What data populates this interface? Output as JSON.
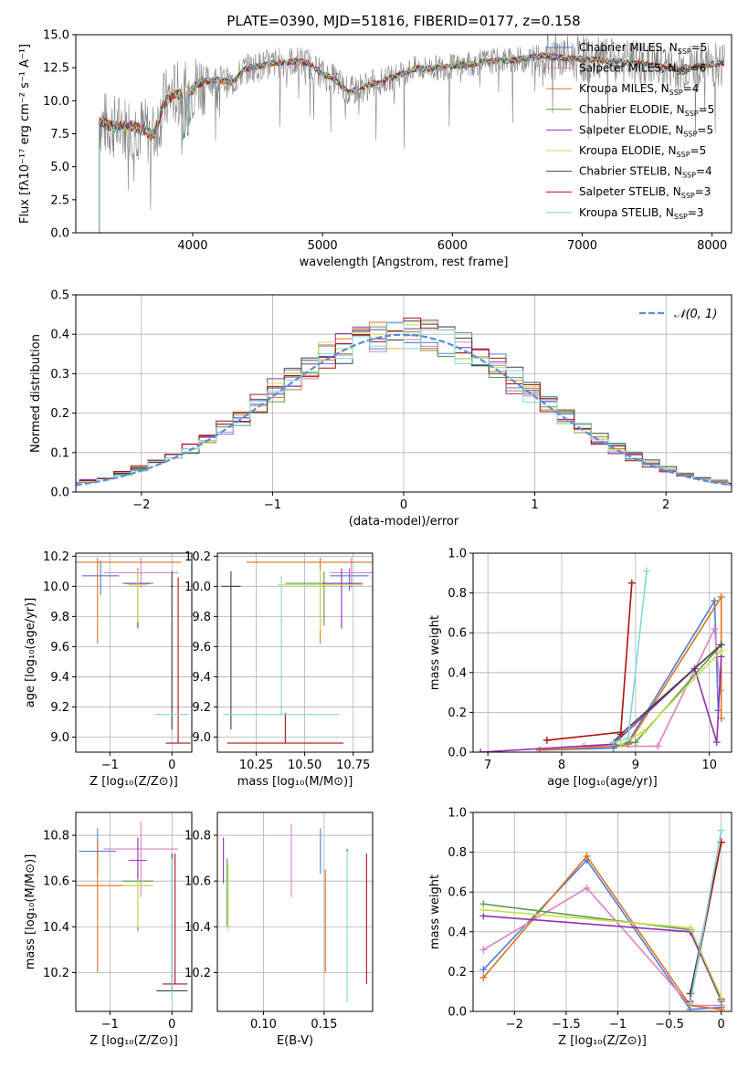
{
  "colors": {
    "chabrier_miles": "#4a7fd6",
    "salpeter_miles": "#e27fc0",
    "kroupa_miles": "#e07020",
    "chabrier_elodie": "#5f9a4a",
    "salpeter_elodie": "#9030b0",
    "kroupa_elodie": "#c8e050",
    "chabrier_stelib": "#404040",
    "salpeter_stelib": "#b01010",
    "kroupa_stelib": "#80d8d8",
    "data": "#808080",
    "gauss": "#5b8ed8"
  },
  "chart_data": [
    {
      "id": "spectrum",
      "type": "line",
      "title": "PLATE=0390, MJD=51816, FIBERID=0177, z=0.158",
      "xlabel": "wavelength [Angstrom, rest frame]",
      "ylabel": "Flux [fλ10⁻¹⁷ erg cm⁻² s⁻¹ A⁻¹]",
      "xlim": [
        3100,
        8150
      ],
      "ylim": [
        0,
        15
      ],
      "xticks": [
        4000,
        5000,
        6000,
        7000,
        8000
      ],
      "yticks": [
        0.0,
        2.5,
        5.0,
        7.5,
        10.0,
        12.5,
        15.0
      ],
      "grid": false,
      "legend_position": "right",
      "legend": [
        {
          "key": "chabrier_miles",
          "label": "Chabrier MILES, N",
          "sub": "SSP",
          "tail": "=5"
        },
        {
          "key": "salpeter_miles",
          "label": "Salpeter MILES, N",
          "sub": "SSP",
          "tail": "=6"
        },
        {
          "key": "kroupa_miles",
          "label": "Kroupa MILES, N",
          "sub": "SSP",
          "tail": "=4"
        },
        {
          "key": "chabrier_elodie",
          "label": "Chabrier ELODIE, N",
          "sub": "SSP",
          "tail": "=5"
        },
        {
          "key": "salpeter_elodie",
          "label": "Salpeter ELODIE, N",
          "sub": "SSP",
          "tail": "=5"
        },
        {
          "key": "kroupa_elodie",
          "label": "Kroupa ELODIE, N",
          "sub": "SSP",
          "tail": "=5"
        },
        {
          "key": "chabrier_stelib",
          "label": "Chabrier STELIB, N",
          "sub": "SSP",
          "tail": "=4"
        },
        {
          "key": "salpeter_stelib",
          "label": "Salpeter STELIB, N",
          "sub": "SSP",
          "tail": "=3"
        },
        {
          "key": "kroupa_stelib",
          "label": "Kroupa STELIB, N",
          "sub": "SSP",
          "tail": "=3"
        }
      ],
      "continuum": [
        [
          3280,
          8.4
        ],
        [
          3400,
          8.0
        ],
        [
          3550,
          8.1
        ],
        [
          3700,
          7.4
        ],
        [
          3780,
          9.8
        ],
        [
          3850,
          10.5
        ],
        [
          3950,
          10.4
        ],
        [
          4050,
          11.4
        ],
        [
          4200,
          11.6
        ],
        [
          4300,
          11.3
        ],
        [
          4400,
          12.4
        ],
        [
          4600,
          12.8
        ],
        [
          4800,
          13.0
        ],
        [
          4900,
          12.8
        ],
        [
          5000,
          12.0
        ],
        [
          5100,
          11.6
        ],
        [
          5200,
          10.6
        ],
        [
          5300,
          11.0
        ],
        [
          5500,
          11.6
        ],
        [
          5700,
          12.4
        ],
        [
          5900,
          12.5
        ],
        [
          6100,
          12.7
        ],
        [
          6300,
          13.0
        ],
        [
          6500,
          13.1
        ],
        [
          6700,
          13.4
        ],
        [
          6900,
          13.2
        ],
        [
          7100,
          13.1
        ],
        [
          7300,
          12.9
        ],
        [
          7500,
          12.8
        ],
        [
          7700,
          12.4
        ],
        [
          7900,
          12.6
        ],
        [
          8100,
          12.9
        ]
      ]
    },
    {
      "id": "residuals",
      "type": "bar",
      "xlabel": "(data-model)/error",
      "ylabel": "Normed distribution",
      "xlim": [
        -2.5,
        2.5
      ],
      "ylim": [
        0,
        0.5
      ],
      "xticks": [
        -2,
        -1,
        0,
        1,
        2
      ],
      "yticks": [
        0.0,
        0.1,
        0.2,
        0.3,
        0.4,
        0.5
      ],
      "grid": true,
      "legend_position": "top-right",
      "legend": [
        {
          "label": "𝒩(0, 1)"
        }
      ],
      "gaussian": {
        "mean": 0,
        "sigma": 1
      }
    },
    {
      "id": "age_vs_Z",
      "type": "scatter",
      "xlabel": "Z [log₁₀(Z/Z⊙)]",
      "ylabel": "age  [log₁₀(age/yr)]",
      "xlim": [
        -1.55,
        0.32
      ],
      "ylim": [
        8.9,
        10.22
      ],
      "xticks": [
        -1,
        0
      ],
      "yticks": [
        9.0,
        9.2,
        9.4,
        9.6,
        9.8,
        10.0,
        10.2
      ],
      "grid": true,
      "points": [
        {
          "key": "chabrier_miles",
          "x": -1.15,
          "y": 10.07,
          "xerr": 0.3,
          "yerr": [
            0.13,
            0.1
          ]
        },
        {
          "key": "salpeter_miles",
          "x": -0.5,
          "y": 10.09,
          "xerr": 0.6,
          "yerr": [
            0.1,
            0.1
          ]
        },
        {
          "key": "kroupa_miles",
          "x": -1.2,
          "y": 10.16,
          "xerr": 1.35,
          "yerr": [
            0.54,
            0.03
          ]
        },
        {
          "key": "chabrier_elodie",
          "x": -0.55,
          "y": 10.02,
          "xerr": 0.25,
          "yerr": [
            0.28,
            0.08
          ]
        },
        {
          "key": "salpeter_elodie",
          "x": -0.55,
          "y": 10.02,
          "xerr": 0.2,
          "yerr": [
            0.3,
            0.1
          ]
        },
        {
          "key": "kroupa_elodie",
          "x": -0.55,
          "y": 10.01,
          "xerr": 0.15,
          "yerr": [
            0.25,
            0.1
          ]
        },
        {
          "key": "chabrier_stelib",
          "x": 0.0,
          "y": 10.0,
          "xerr": 0.02,
          "yerr": [
            0.95,
            0.1
          ]
        },
        {
          "key": "salpeter_stelib",
          "x": 0.1,
          "y": 8.96,
          "xerr": 0.2,
          "yerr": [
            0.0,
            1.1
          ]
        },
        {
          "key": "kroupa_stelib",
          "x": 0.0,
          "y": 9.15,
          "xerr": 0.28,
          "yerr": [
            0.0,
            0.0
          ]
        }
      ]
    },
    {
      "id": "age_vs_mass",
      "type": "scatter",
      "xlabel": "mass [log₁₀(M/M⊙)]",
      "ylabel": "",
      "xlim": [
        10.05,
        10.85
      ],
      "ylim": [
        8.9,
        10.22
      ],
      "xticks": [
        10.25,
        10.5,
        10.75
      ],
      "xticklabels": [
        "10.25",
        "10.50",
        "10.75"
      ],
      "yticks": [
        9.0,
        9.2,
        9.4,
        9.6,
        9.8,
        10.0,
        10.2
      ],
      "grid": true,
      "points": [
        {
          "key": "chabrier_miles",
          "x": 10.73,
          "y": 10.07,
          "xerr": 0.1,
          "yerr": [
            0.1,
            0.05
          ]
        },
        {
          "key": "salpeter_miles",
          "x": 10.74,
          "y": 10.09,
          "xerr": 0.11,
          "yerr": [
            0.1,
            0.1
          ]
        },
        {
          "key": "kroupa_miles",
          "x": 10.58,
          "y": 10.16,
          "xerr": 0.38,
          "yerr": [
            0.54,
            0.03
          ]
        },
        {
          "key": "chabrier_elodie",
          "x": 10.6,
          "y": 10.02,
          "xerr": 0.2,
          "yerr": [
            0.28,
            0.08
          ]
        },
        {
          "key": "salpeter_elodie",
          "x": 10.69,
          "y": 10.02,
          "xerr": 0.1,
          "yerr": [
            0.3,
            0.1
          ]
        },
        {
          "key": "kroupa_elodie",
          "x": 10.58,
          "y": 10.01,
          "xerr": 0.22,
          "yerr": [
            0.3,
            0.1
          ]
        },
        {
          "key": "chabrier_stelib",
          "x": 10.12,
          "y": 10.0,
          "xerr": 0.05,
          "yerr": [
            0.95,
            0.1
          ]
        },
        {
          "key": "salpeter_stelib",
          "x": 10.4,
          "y": 8.96,
          "xerr": 0.3,
          "yerr": [
            0.0,
            0.2
          ]
        },
        {
          "key": "kroupa_stelib",
          "x": 10.38,
          "y": 9.15,
          "xerr": 0.3,
          "yerr": [
            0.0,
            0.92
          ]
        }
      ]
    },
    {
      "id": "massweight_vs_age",
      "type": "line",
      "xlabel": "age  [log₁₀(age/yr)]",
      "ylabel": "mass weight",
      "xlim": [
        6.8,
        10.3
      ],
      "ylim": [
        0,
        1
      ],
      "xticks": [
        7,
        8,
        9,
        10
      ],
      "yticks": [
        0.0,
        0.2,
        0.4,
        0.6,
        0.8,
        1.0
      ],
      "grid": true,
      "series": [
        {
          "key": "chabrier_miles",
          "points": [
            [
              7.7,
              0.01
            ],
            [
              8.7,
              0.02
            ],
            [
              8.9,
              0.05
            ],
            [
              10.07,
              0.76
            ],
            [
              10.12,
              0.21
            ]
          ]
        },
        {
          "key": "salpeter_miles",
          "points": [
            [
              8.3,
              0.03
            ],
            [
              9.3,
              0.03
            ],
            [
              10.07,
              0.62
            ],
            [
              10.15,
              0.31
            ]
          ]
        },
        {
          "key": "kroupa_miles",
          "points": [
            [
              7.7,
              0.01
            ],
            [
              8.7,
              0.03
            ],
            [
              8.9,
              0.04
            ],
            [
              10.16,
              0.78
            ],
            [
              10.16,
              0.17
            ]
          ]
        },
        {
          "key": "chabrier_elodie",
          "points": [
            [
              8.7,
              0.03
            ],
            [
              9.0,
              0.05
            ],
            [
              10.16,
              0.54
            ]
          ]
        },
        {
          "key": "salpeter_elodie",
          "points": [
            [
              6.9,
              0.0
            ],
            [
              8.7,
              0.04
            ],
            [
              9.8,
              0.42
            ],
            [
              10.1,
              0.05
            ],
            [
              10.16,
              0.48
            ]
          ]
        },
        {
          "key": "kroupa_elodie",
          "points": [
            [
              8.8,
              0.04
            ],
            [
              9.1,
              0.1
            ],
            [
              10.16,
              0.51
            ]
          ]
        },
        {
          "key": "chabrier_stelib",
          "points": [
            [
              8.7,
              0.05
            ],
            [
              8.8,
              0.09
            ],
            [
              10.16,
              0.54
            ]
          ]
        },
        {
          "key": "salpeter_stelib",
          "points": [
            [
              7.8,
              0.06
            ],
            [
              8.8,
              0.1
            ],
            [
              8.95,
              0.85
            ]
          ]
        },
        {
          "key": "kroupa_stelib",
          "points": [
            [
              8.7,
              0.05
            ],
            [
              8.9,
              0.07
            ],
            [
              9.15,
              0.91
            ]
          ]
        }
      ]
    },
    {
      "id": "mass_vs_Z",
      "type": "scatter",
      "xlabel": "Z [log₁₀(Z/Z⊙)]",
      "ylabel": "mass [log₁₀(M/M⊙)]",
      "xlim": [
        -1.55,
        0.32
      ],
      "ylim": [
        10.03,
        10.9
      ],
      "xticks": [
        -1,
        0
      ],
      "yticks": [
        10.2,
        10.4,
        10.6,
        10.8
      ],
      "grid": true,
      "points": [
        {
          "key": "chabrier_miles",
          "x": -1.2,
          "y": 10.73,
          "xerr": 0.3,
          "yerr": [
            0.1,
            0.1
          ]
        },
        {
          "key": "salpeter_miles",
          "x": -0.5,
          "y": 10.74,
          "xerr": 0.6,
          "yerr": [
            0.21,
            0.12
          ]
        },
        {
          "key": "kroupa_miles",
          "x": -1.2,
          "y": 10.58,
          "xerr": 0.85,
          "yerr": [
            0.38,
            0.2
          ]
        },
        {
          "key": "chabrier_elodie",
          "x": -0.55,
          "y": 10.6,
          "xerr": 0.25,
          "yerr": [
            0.22,
            0.05
          ]
        },
        {
          "key": "salpeter_elodie",
          "x": -0.55,
          "y": 10.69,
          "xerr": 0.15,
          "yerr": [
            0.1,
            0.1
          ]
        },
        {
          "key": "kroupa_elodie",
          "x": -0.55,
          "y": 10.58,
          "xerr": 0.25,
          "yerr": [
            0.18,
            0.03
          ]
        },
        {
          "key": "chabrier_stelib",
          "x": 0.0,
          "y": 10.12,
          "xerr": 0.25,
          "yerr": [
            0.0,
            0.6
          ]
        },
        {
          "key": "salpeter_stelib",
          "x": 0.05,
          "y": 10.15,
          "xerr": 0.2,
          "yerr": [
            0.0,
            0.57
          ]
        },
        {
          "key": "kroupa_stelib",
          "x": 0.0,
          "y": 10.2,
          "xerr": 0.02,
          "yerr": [
            0.12,
            0.5
          ]
        }
      ]
    },
    {
      "id": "mass_vs_ebv",
      "type": "scatter",
      "xlabel": "E(B-V)",
      "ylabel": "",
      "xlim": [
        0.062,
        0.19
      ],
      "ylim": [
        10.03,
        10.9
      ],
      "xticks": [
        0.1,
        0.15
      ],
      "xticklabels": [
        "0.10",
        "0.15"
      ],
      "yticks": [
        10.2,
        10.4,
        10.6,
        10.8
      ],
      "grid": true,
      "points": [
        {
          "key": "chabrier_miles",
          "x": 0.147,
          "y": 10.73,
          "xerr": 0.0,
          "yerr": [
            0.1,
            0.1
          ]
        },
        {
          "key": "salpeter_miles",
          "x": 0.123,
          "y": 10.74,
          "xerr": 0.0,
          "yerr": [
            0.21,
            0.11
          ]
        },
        {
          "key": "kroupa_miles",
          "x": 0.151,
          "y": 10.58,
          "xerr": 0.0,
          "yerr": [
            0.38,
            0.07
          ]
        },
        {
          "key": "chabrier_elodie",
          "x": 0.07,
          "y": 10.6,
          "xerr": 0.0,
          "yerr": [
            0.2,
            0.1
          ]
        },
        {
          "key": "salpeter_elodie",
          "x": 0.067,
          "y": 10.69,
          "xerr": 0.0,
          "yerr": [
            0.1,
            0.1
          ]
        },
        {
          "key": "kroupa_elodie",
          "x": 0.071,
          "y": 10.58,
          "xerr": 0.0,
          "yerr": [
            0.2,
            0.1
          ]
        },
        {
          "key": "chabrier_stelib",
          "x": 0.169,
          "y": 10.73,
          "xerr": 0.0,
          "yerr": [
            0.0,
            0.01
          ]
        },
        {
          "key": "salpeter_stelib",
          "x": 0.185,
          "y": 10.45,
          "xerr": 0.0,
          "yerr": [
            0.3,
            0.27
          ]
        },
        {
          "key": "kroupa_stelib",
          "x": 0.169,
          "y": 10.4,
          "xerr": 0.0,
          "yerr": [
            0.33,
            0.33
          ]
        }
      ]
    },
    {
      "id": "massweight_vs_Z",
      "type": "line",
      "xlabel": "Z [log₁₀(Z/Z⊙)]",
      "ylabel": "mass weight",
      "xlim": [
        -2.4,
        0.1
      ],
      "ylim": [
        0,
        1
      ],
      "xticks": [
        -2.0,
        -1.5,
        -1.0,
        -0.5,
        0.0
      ],
      "yticks": [
        0.0,
        0.2,
        0.4,
        0.6,
        0.8,
        1.0
      ],
      "grid": true,
      "series": [
        {
          "key": "chabrier_miles",
          "points": [
            [
              -2.3,
              0.21
            ],
            [
              -1.3,
              0.76
            ],
            [
              -0.3,
              0.01
            ],
            [
              0.0,
              0.02
            ]
          ]
        },
        {
          "key": "salpeter_miles",
          "points": [
            [
              -2.3,
              0.31
            ],
            [
              -1.3,
              0.62
            ],
            [
              -0.3,
              0.03
            ],
            [
              0.0,
              0.03
            ]
          ]
        },
        {
          "key": "kroupa_miles",
          "points": [
            [
              -2.3,
              0.17
            ],
            [
              -1.3,
              0.78
            ],
            [
              -0.3,
              0.03
            ],
            [
              0.0,
              0.01
            ]
          ]
        },
        {
          "key": "chabrier_elodie",
          "points": [
            [
              -2.3,
              0.54
            ],
            [
              -0.3,
              0.41
            ],
            [
              0.0,
              0.05
            ]
          ]
        },
        {
          "key": "salpeter_elodie",
          "points": [
            [
              -2.3,
              0.48
            ],
            [
              -0.3,
              0.4
            ],
            [
              0.0,
              0.06
            ]
          ]
        },
        {
          "key": "kroupa_elodie",
          "points": [
            [
              -2.3,
              0.51
            ],
            [
              -0.3,
              0.42
            ],
            [
              0.0,
              0.07
            ]
          ]
        },
        {
          "key": "chabrier_stelib",
          "points": [
            [
              -0.3,
              0.09
            ],
            [
              0.0,
              0.85
            ]
          ]
        },
        {
          "key": "salpeter_stelib",
          "points": [
            [
              -0.3,
              0.05
            ],
            [
              0.0,
              0.85
            ]
          ]
        },
        {
          "key": "kroupa_stelib",
          "points": [
            [
              -0.3,
              0.04
            ],
            [
              0.0,
              0.91
            ]
          ]
        }
      ]
    }
  ]
}
